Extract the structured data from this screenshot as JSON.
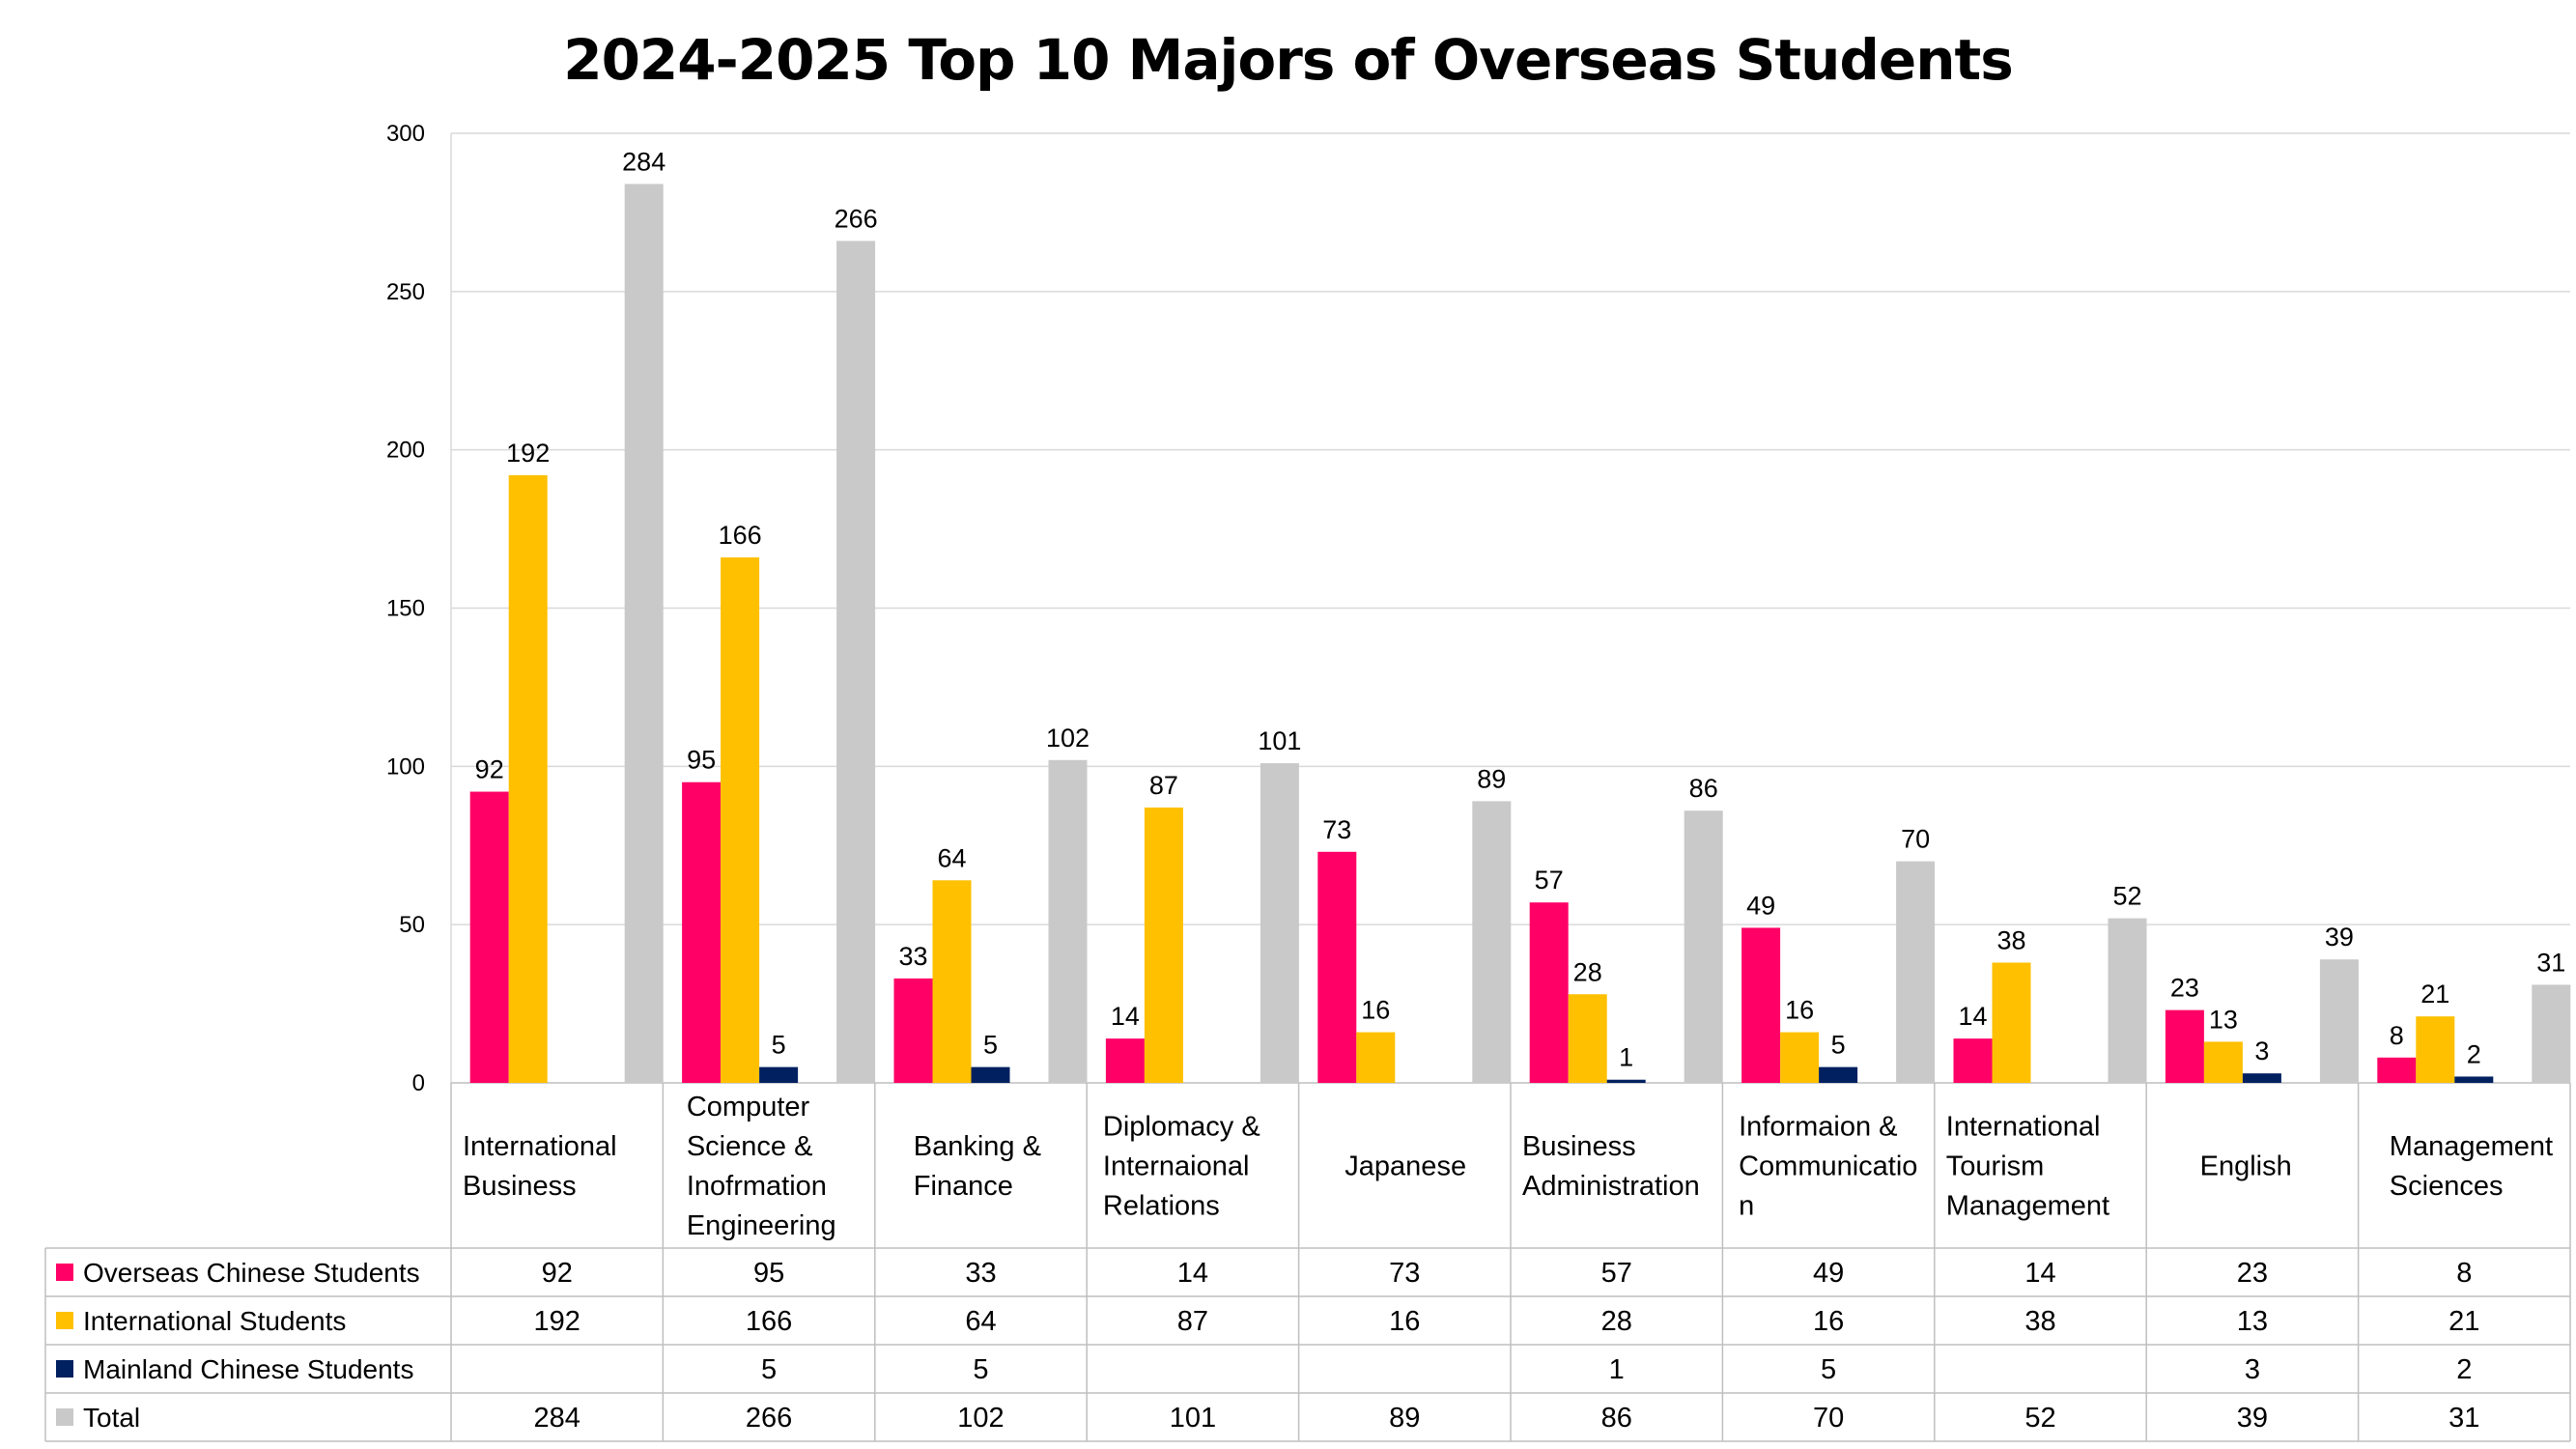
{
  "chart_data": {
    "type": "bar",
    "title": "2024-2025 Top 10 Majors of Overseas Students",
    "xlabel": "",
    "ylabel": "",
    "ylim": [
      0,
      300
    ],
    "yticks": [
      "0",
      "50",
      "100",
      "150",
      "200",
      "250",
      "300"
    ],
    "grid": true,
    "legend": "data-table-left",
    "categories": [
      [
        "International",
        "Business"
      ],
      [
        "Computer",
        "Science &",
        "Inofrmation",
        "Engineering"
      ],
      [
        "Banking &",
        "Finance"
      ],
      [
        "Diplomacy &",
        "Internaional",
        "Relations"
      ],
      [
        "Japanese"
      ],
      [
        "Business",
        "Administration"
      ],
      [
        "Informaion &",
        "Communicatio",
        "n"
      ],
      [
        "International",
        "Tourism",
        "Management"
      ],
      [
        "English"
      ],
      [
        "Management",
        "Sciences"
      ]
    ],
    "series": [
      {
        "name": "Overseas Chinese Students",
        "color": "#ff0066",
        "values": [
          92,
          95,
          33,
          14,
          73,
          57,
          49,
          14,
          23,
          8
        ]
      },
      {
        "name": "International Students",
        "color": "#ffc000",
        "values": [
          192,
          166,
          64,
          87,
          16,
          28,
          16,
          38,
          13,
          21
        ]
      },
      {
        "name": "Mainland Chinese Students",
        "color": "#002060",
        "values": [
          null,
          5,
          5,
          null,
          null,
          1,
          5,
          null,
          3,
          2
        ]
      },
      {
        "name": "Total",
        "color": "#c9c9c9",
        "values": [
          284,
          266,
          102,
          101,
          89,
          86,
          70,
          52,
          39,
          31
        ]
      }
    ]
  }
}
